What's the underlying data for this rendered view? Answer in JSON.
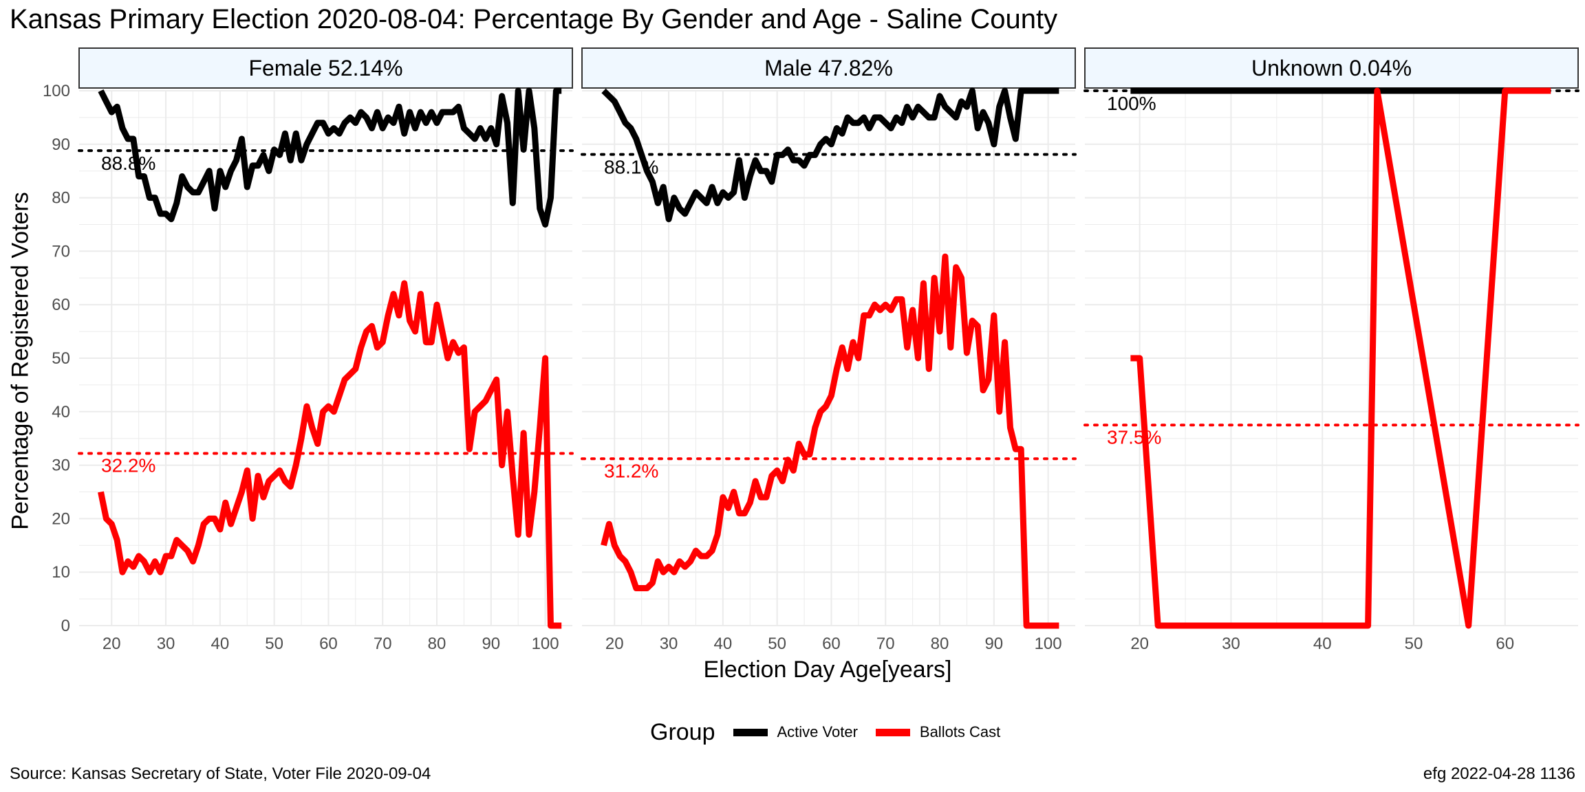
{
  "title": "Kansas Primary Election 2020-08-04:  Percentage By Gender and Age - Saline County",
  "footer": {
    "source": "Source:  Kansas Secretary of State, Voter File  2020-09-04",
    "stamp": "efg 2022-04-28 1136"
  },
  "legend": {
    "title": "Group",
    "placement": "bottom",
    "items": [
      {
        "label": "Active Voter",
        "color": "#000000"
      },
      {
        "label": "Ballots Cast",
        "color": "#ff0000"
      }
    ]
  },
  "colors": {
    "active": "#000000",
    "ballots": "#ff0000",
    "strip_fill": "#f0f8ff",
    "grid": "#ebebeb"
  },
  "chart_data": {
    "type": "line",
    "xlabel": "Election Day Age[years]",
    "ylabel": "Percentage of Registered Voters",
    "ylim": [
      0,
      100
    ],
    "yticks": [
      0,
      10,
      20,
      30,
      40,
      50,
      60,
      70,
      80,
      90,
      100
    ],
    "grid": true,
    "panels": [
      {
        "strip": "Female 52.14%",
        "xlim": [
          14,
          105
        ],
        "xticks": [
          20,
          30,
          40,
          50,
          60,
          70,
          80,
          90,
          100
        ],
        "active_mean": 88.8,
        "active_mean_label": "88.8%",
        "ballots_mean": 32.2,
        "ballots_mean_label": "32.2%",
        "series": [
          {
            "name": "Active Voter",
            "x": [
              18,
              19,
              20,
              21,
              22,
              23,
              24,
              25,
              26,
              27,
              28,
              29,
              30,
              31,
              32,
              33,
              34,
              35,
              36,
              37,
              38,
              39,
              40,
              41,
              42,
              43,
              44,
              45,
              46,
              47,
              48,
              49,
              50,
              51,
              52,
              53,
              54,
              55,
              56,
              57,
              58,
              59,
              60,
              61,
              62,
              63,
              64,
              65,
              66,
              67,
              68,
              69,
              70,
              71,
              72,
              73,
              74,
              75,
              76,
              77,
              78,
              79,
              80,
              81,
              82,
              83,
              84,
              85,
              86,
              87,
              88,
              89,
              90,
              91,
              92,
              93,
              94,
              95,
              96,
              97,
              98,
              99,
              100,
              101,
              102,
              103
            ],
            "y": [
              100,
              98,
              96,
              97,
              93,
              91,
              91,
              84,
              84,
              80,
              80,
              77,
              77,
              76,
              79,
              84,
              82,
              81,
              81,
              83,
              85,
              78,
              85,
              82,
              85,
              87,
              91,
              82,
              86,
              86,
              88,
              85,
              89,
              88,
              92,
              87,
              92,
              87,
              90,
              92,
              94,
              94,
              92,
              93,
              92,
              94,
              95,
              94,
              96,
              95,
              93,
              96,
              93,
              95,
              94,
              97,
              92,
              96,
              93,
              96,
              94,
              96,
              94,
              96,
              96,
              96,
              97,
              93,
              92,
              91,
              93,
              91,
              93,
              90,
              99,
              94,
              79,
              100,
              89,
              100,
              93,
              78,
              75,
              80,
              100,
              100
            ]
          },
          {
            "name": "Ballots Cast",
            "x": [
              18,
              19,
              20,
              21,
              22,
              23,
              24,
              25,
              26,
              27,
              28,
              29,
              30,
              31,
              32,
              33,
              34,
              35,
              36,
              37,
              38,
              39,
              40,
              41,
              42,
              43,
              44,
              45,
              46,
              47,
              48,
              49,
              50,
              51,
              52,
              53,
              54,
              55,
              56,
              57,
              58,
              59,
              60,
              61,
              62,
              63,
              64,
              65,
              66,
              67,
              68,
              69,
              70,
              71,
              72,
              73,
              74,
              75,
              76,
              77,
              78,
              79,
              80,
              81,
              82,
              83,
              84,
              85,
              86,
              87,
              88,
              89,
              90,
              91,
              92,
              93,
              94,
              95,
              96,
              97,
              98,
              99,
              100,
              101,
              102,
              103
            ],
            "y": [
              25,
              20,
              19,
              16,
              10,
              12,
              11,
              13,
              12,
              10,
              12,
              10,
              13,
              13,
              16,
              15,
              14,
              12,
              15,
              19,
              20,
              20,
              18,
              23,
              19,
              22,
              25,
              29,
              20,
              28,
              24,
              27,
              28,
              29,
              27,
              26,
              30,
              35,
              41,
              37,
              34,
              40,
              41,
              40,
              43,
              46,
              47,
              48,
              52,
              55,
              56,
              52,
              53,
              58,
              62,
              58,
              64,
              57,
              55,
              62,
              53,
              53,
              60,
              55,
              50,
              53,
              51,
              52,
              33,
              40,
              41,
              42,
              44,
              46,
              30,
              40,
              28,
              17,
              36,
              17,
              25,
              37,
              50,
              0,
              0,
              0
            ]
          }
        ]
      },
      {
        "strip": "Male 47.82%",
        "xlim": [
          14,
          105
        ],
        "xticks": [
          20,
          30,
          40,
          50,
          60,
          70,
          80,
          90,
          100
        ],
        "active_mean": 88.1,
        "active_mean_label": "88.1%",
        "ballots_mean": 31.2,
        "ballots_mean_label": "31.2%",
        "series": [
          {
            "name": "Active Voter",
            "x": [
              18,
              19,
              20,
              21,
              22,
              23,
              24,
              25,
              26,
              27,
              28,
              29,
              30,
              31,
              32,
              33,
              34,
              35,
              36,
              37,
              38,
              39,
              40,
              41,
              42,
              43,
              44,
              45,
              46,
              47,
              48,
              49,
              50,
              51,
              52,
              53,
              54,
              55,
              56,
              57,
              58,
              59,
              60,
              61,
              62,
              63,
              64,
              65,
              66,
              67,
              68,
              69,
              70,
              71,
              72,
              73,
              74,
              75,
              76,
              77,
              78,
              79,
              80,
              81,
              82,
              83,
              84,
              85,
              86,
              87,
              88,
              89,
              90,
              91,
              92,
              93,
              94,
              95,
              96,
              97,
              98,
              99,
              100,
              101,
              102
            ],
            "y": [
              100,
              99,
              98,
              96,
              94,
              93,
              91,
              88,
              85,
              83,
              79,
              82,
              76,
              80,
              78,
              77,
              79,
              81,
              80,
              79,
              82,
              79,
              81,
              80,
              81,
              87,
              80,
              84,
              87,
              85,
              85,
              83,
              88,
              88,
              89,
              87,
              87,
              86,
              88,
              88,
              90,
              91,
              90,
              93,
              92,
              95,
              94,
              94,
              95,
              93,
              95,
              95,
              94,
              93,
              95,
              94,
              97,
              95,
              97,
              96,
              95,
              95,
              99,
              97,
              96,
              95,
              98,
              97,
              100,
              93,
              96,
              94,
              90,
              97,
              100,
              95,
              91,
              100,
              100,
              100,
              100,
              100,
              100,
              100,
              100
            ]
          },
          {
            "name": "Ballots Cast",
            "x": [
              18,
              19,
              20,
              21,
              22,
              23,
              24,
              25,
              26,
              27,
              28,
              29,
              30,
              31,
              32,
              33,
              34,
              35,
              36,
              37,
              38,
              39,
              40,
              41,
              42,
              43,
              44,
              45,
              46,
              47,
              48,
              49,
              50,
              51,
              52,
              53,
              54,
              55,
              56,
              57,
              58,
              59,
              60,
              61,
              62,
              63,
              64,
              65,
              66,
              67,
              68,
              69,
              70,
              71,
              72,
              73,
              74,
              75,
              76,
              77,
              78,
              79,
              80,
              81,
              82,
              83,
              84,
              85,
              86,
              87,
              88,
              89,
              90,
              91,
              92,
              93,
              94,
              95,
              96,
              97,
              98,
              99,
              100,
              101,
              102
            ],
            "y": [
              15,
              19,
              15,
              13,
              12,
              10,
              7,
              7,
              7,
              8,
              12,
              10,
              11,
              10,
              12,
              11,
              12,
              14,
              13,
              13,
              14,
              17,
              24,
              22,
              25,
              21,
              21,
              23,
              27,
              24,
              24,
              28,
              29,
              27,
              31,
              29,
              34,
              32,
              32,
              37,
              40,
              41,
              43,
              48,
              52,
              48,
              53,
              50,
              58,
              58,
              60,
              59,
              60,
              59,
              61,
              61,
              52,
              59,
              50,
              64,
              48,
              65,
              55,
              69,
              52,
              67,
              65,
              51,
              57,
              56,
              44,
              46,
              58,
              40,
              53,
              37,
              33,
              33,
              0,
              0,
              0,
              0,
              0,
              0,
              0
            ]
          }
        ]
      },
      {
        "strip": "Unknown 0.04%",
        "xlim": [
          14,
          68
        ],
        "xticks": [
          20,
          30,
          40,
          50,
          60
        ],
        "active_mean": 100,
        "active_mean_label": "100%",
        "ballots_mean": 37.5,
        "ballots_mean_label": "37.5%",
        "series": [
          {
            "name": "Active Voter",
            "x": [
              19,
              20,
              22,
              46,
              56,
              60,
              61,
              62,
              63,
              64,
              65
            ],
            "y": [
              100,
              100,
              100,
              100,
              100,
              100,
              100,
              100,
              100,
              100,
              100
            ]
          },
          {
            "name": "Ballots Cast",
            "x": [
              19,
              20,
              22,
              45,
              46,
              56,
              60,
              61,
              62,
              63,
              64,
              65
            ],
            "y": [
              50,
              50,
              0,
              0,
              100,
              0,
              100,
              100,
              100,
              100,
              100,
              100
            ]
          }
        ]
      }
    ]
  }
}
